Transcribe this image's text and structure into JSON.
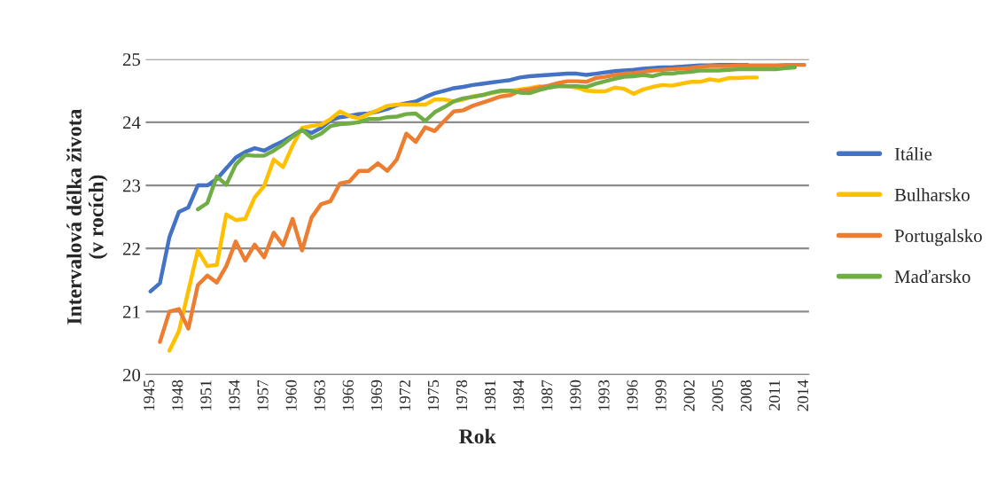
{
  "chart_data": {
    "type": "line",
    "xlabel": "Rok",
    "ylabel": "Intervalová délka života\n(v rocích)",
    "categories": [
      "1945",
      null,
      null,
      "1948",
      null,
      null,
      "1951",
      null,
      null,
      "1954",
      null,
      null,
      "1957",
      null,
      null,
      "1960",
      null,
      null,
      "1963",
      null,
      null,
      "1966",
      null,
      null,
      "1969",
      null,
      null,
      "1972",
      null,
      null,
      "1975",
      null,
      null,
      "1978",
      null,
      null,
      "1981",
      null,
      null,
      "1984",
      null,
      null,
      "1987",
      null,
      null,
      "1990",
      null,
      null,
      "1993",
      null,
      null,
      "1996",
      null,
      null,
      "1999",
      null,
      null,
      "2002",
      null,
      null,
      "2005",
      null,
      null,
      "2008",
      null,
      null,
      "2011",
      null,
      null,
      "2014"
    ],
    "ylim": [
      20,
      25
    ],
    "yticks": [
      20,
      21,
      22,
      23,
      24,
      25
    ],
    "grid": "y",
    "legend": "right",
    "marker": "none",
    "line_style": "solid",
    "series": [
      {
        "name": "Itálie",
        "color": "#4472c4",
        "values": [
          21.32,
          21.45,
          22.18,
          22.58,
          22.65,
          23.0,
          23.0,
          23.1,
          23.27,
          23.44,
          23.53,
          23.59,
          23.55,
          23.63,
          23.7,
          23.79,
          23.88,
          23.83,
          23.91,
          24.03,
          24.08,
          24.1,
          24.13,
          24.14,
          24.17,
          24.21,
          24.27,
          24.3,
          24.33,
          24.4,
          24.46,
          24.5,
          24.54,
          24.56,
          24.59,
          24.61,
          24.63,
          24.65,
          24.67,
          24.71,
          24.73,
          24.74,
          24.75,
          24.76,
          24.77,
          24.77,
          24.75,
          24.77,
          24.79,
          24.81,
          24.82,
          24.83,
          24.85,
          24.86,
          24.87,
          24.87,
          24.88,
          24.89,
          24.9,
          24.9,
          24.91,
          24.91,
          24.91,
          24.91,
          null,
          null,
          null,
          null,
          null,
          null
        ]
      },
      {
        "name": "Bulharsko",
        "color": "#ffc000",
        "values": [
          null,
          null,
          20.38,
          20.69,
          21.33,
          21.97,
          21.72,
          21.74,
          22.54,
          22.45,
          22.47,
          22.81,
          22.99,
          23.41,
          23.29,
          23.63,
          23.91,
          23.94,
          23.96,
          24.05,
          24.17,
          24.1,
          24.06,
          24.13,
          24.19,
          24.26,
          24.28,
          24.28,
          24.28,
          24.28,
          24.36,
          24.36,
          24.33,
          24.36,
          24.41,
          24.43,
          24.46,
          24.49,
          24.5,
          24.52,
          24.54,
          24.57,
          24.55,
          24.58,
          24.57,
          24.55,
          24.5,
          24.49,
          24.49,
          24.55,
          24.53,
          24.45,
          24.52,
          24.56,
          24.59,
          24.58,
          24.61,
          24.64,
          24.64,
          24.68,
          24.66,
          24.7,
          24.7,
          24.71,
          24.71,
          null,
          null,
          null,
          null,
          null
        ]
      },
      {
        "name": "Portugalsko",
        "color": "#ed7d31",
        "values": [
          null,
          20.52,
          21.0,
          21.04,
          20.73,
          21.42,
          21.57,
          21.46,
          21.72,
          22.11,
          21.81,
          22.06,
          21.86,
          22.25,
          22.05,
          22.47,
          21.97,
          22.49,
          22.7,
          22.75,
          23.03,
          23.06,
          23.23,
          23.23,
          23.35,
          23.23,
          23.41,
          23.82,
          23.69,
          23.92,
          23.86,
          24.02,
          24.17,
          24.19,
          24.26,
          24.31,
          24.36,
          24.41,
          24.43,
          24.5,
          24.52,
          24.55,
          24.58,
          24.62,
          24.65,
          24.65,
          24.64,
          24.7,
          24.72,
          24.75,
          24.77,
          24.78,
          24.8,
          24.82,
          24.83,
          24.84,
          24.85,
          24.86,
          24.88,
          24.89,
          24.89,
          24.89,
          24.9,
          24.9,
          24.9,
          24.9,
          24.9,
          24.91,
          24.91,
          24.91
        ]
      },
      {
        "name": "Maďarsko",
        "color": "#70ad47",
        "values": [
          null,
          null,
          null,
          null,
          null,
          22.62,
          22.72,
          23.14,
          23.01,
          23.33,
          23.48,
          23.47,
          23.47,
          23.55,
          23.65,
          23.77,
          23.88,
          23.75,
          23.82,
          23.94,
          23.97,
          23.98,
          24.0,
          24.05,
          24.05,
          24.08,
          24.09,
          24.13,
          24.14,
          24.02,
          24.16,
          24.24,
          24.33,
          24.38,
          24.4,
          24.43,
          24.47,
          24.5,
          24.5,
          24.47,
          24.46,
          24.51,
          24.55,
          24.57,
          24.57,
          24.57,
          24.56,
          24.61,
          24.65,
          24.69,
          24.72,
          24.73,
          24.75,
          24.73,
          24.77,
          24.77,
          24.79,
          24.8,
          24.82,
          24.82,
          24.82,
          24.83,
          24.84,
          24.84,
          24.84,
          24.84,
          24.84,
          24.86,
          24.87,
          null
        ]
      }
    ]
  }
}
